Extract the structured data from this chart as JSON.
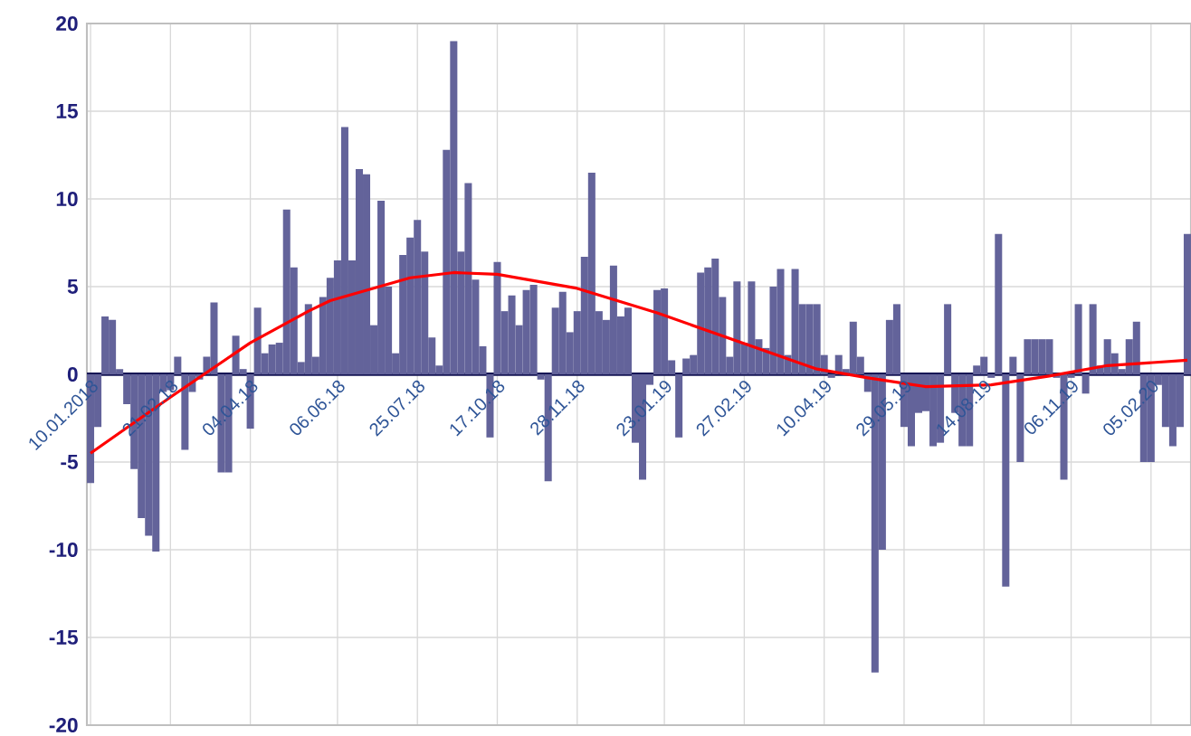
{
  "chart_data": {
    "type": "bar",
    "categories": [
      "10.01.2018",
      null,
      null,
      null,
      null,
      null,
      null,
      null,
      null,
      null,
      null,
      "21.02.18",
      null,
      null,
      null,
      null,
      null,
      null,
      null,
      null,
      null,
      null,
      "04.04.18",
      null,
      null,
      null,
      null,
      null,
      null,
      null,
      null,
      null,
      null,
      null,
      "06.06.18",
      null,
      null,
      null,
      null,
      null,
      null,
      null,
      null,
      null,
      null,
      "25.07.18",
      null,
      null,
      null,
      null,
      null,
      null,
      null,
      null,
      null,
      null,
      "17.10.18",
      null,
      null,
      null,
      null,
      null,
      null,
      null,
      null,
      null,
      null,
      "28.11.18",
      null,
      null,
      null,
      null,
      null,
      null,
      null,
      null,
      null,
      null,
      null,
      "23.01.19",
      null,
      null,
      null,
      null,
      null,
      null,
      null,
      null,
      null,
      null,
      "27.02.19",
      null,
      null,
      null,
      null,
      null,
      null,
      null,
      null,
      null,
      null,
      "10.04.19",
      null,
      null,
      null,
      null,
      null,
      null,
      null,
      null,
      null,
      null,
      "29.05.19",
      null,
      null,
      null,
      null,
      null,
      null,
      null,
      null,
      null,
      null,
      "14.08.19",
      null,
      null,
      null,
      null,
      null,
      null,
      null,
      null,
      null,
      null,
      null,
      "06.11.19",
      null,
      null,
      null,
      null,
      null,
      null,
      null,
      null,
      null,
      null,
      "05.02.20",
      null,
      null,
      null,
      null,
      null
    ],
    "series": [
      {
        "color": "#63639a",
        "values": [
          -6.2,
          -3.0,
          3.3,
          3.1,
          0.3,
          -1.7,
          -5.4,
          -8.2,
          -9.2,
          -10.1,
          -1.0,
          -0.9,
          1.0,
          -4.3,
          -1.0,
          -0.3,
          1.0,
          4.1,
          -5.6,
          -5.6,
          2.2,
          0.3,
          -3.1,
          3.8,
          1.2,
          1.7,
          1.8,
          9.4,
          6.1,
          0.7,
          4.0,
          1.0,
          4.4,
          5.5,
          6.5,
          14.1,
          6.5,
          11.7,
          11.4,
          2.8,
          9.9,
          5.0,
          1.2,
          6.8,
          7.8,
          8.8,
          7.0,
          2.1,
          0.5,
          12.8,
          19.0,
          7.0,
          10.9,
          5.4,
          1.6,
          -3.6,
          6.4,
          3.6,
          4.5,
          2.8,
          4.8,
          5.1,
          -0.3,
          -6.1,
          3.8,
          4.7,
          2.4,
          3.6,
          6.7,
          11.5,
          3.6,
          3.1,
          6.2,
          3.3,
          3.8,
          -3.9,
          -6.0,
          -0.6,
          4.8,
          4.9,
          0.8,
          -3.6,
          0.9,
          1.1,
          5.8,
          6.1,
          6.6,
          4.4,
          1.0,
          5.3,
          1.8,
          5.3,
          2.0,
          1.5,
          5.0,
          6.0,
          1.1,
          6.0,
          4.0,
          4.0,
          4.0,
          1.1,
          -0.2,
          1.1,
          0.3,
          3.0,
          1.0,
          -1.0,
          -17.0,
          -10.0,
          3.1,
          4.0,
          -3.0,
          -4.1,
          -2.2,
          -2.1,
          -4.1,
          -3.9,
          4.0,
          -2.2,
          -4.1,
          -4.1,
          0.5,
          1.0,
          -0.2,
          8.0,
          -12.1,
          1.0,
          -5.0,
          2.0,
          2.0,
          2.0,
          2.0,
          -0.2,
          -6.0,
          -0.2,
          4.0,
          -1.1,
          4.0,
          0.5,
          2.0,
          1.2,
          0.3,
          2.0,
          3.0,
          -5.0,
          -5.0,
          -0.6,
          -3.0,
          -4.1,
          -3.0,
          8.0
        ]
      },
      {
        "type": "line",
        "color": "#ff0000",
        "values": [
          -4.5,
          null,
          null,
          null,
          null,
          null,
          null,
          null,
          null,
          null,
          null,
          -1.3,
          null,
          null,
          null,
          null,
          null,
          null,
          null,
          null,
          null,
          null,
          1.8,
          null,
          null,
          null,
          null,
          null,
          null,
          null,
          3.6,
          null,
          null,
          4.2,
          null,
          null,
          null,
          null,
          null,
          null,
          null,
          null,
          null,
          null,
          5.5,
          null,
          null,
          null,
          null,
          null,
          5.8,
          null,
          null,
          null,
          null,
          null,
          5.7,
          null,
          null,
          null,
          null,
          null,
          null,
          null,
          null,
          null,
          null,
          4.9,
          null,
          null,
          null,
          null,
          null,
          null,
          null,
          null,
          null,
          null,
          3.5,
          null,
          null,
          null,
          null,
          null,
          null,
          null,
          null,
          null,
          null,
          1.9,
          null,
          null,
          null,
          null,
          null,
          null,
          null,
          null,
          null,
          null,
          0.3,
          null,
          null,
          null,
          null,
          null,
          null,
          -0.2,
          null,
          null,
          null,
          null,
          null,
          null,
          null,
          -0.7,
          null,
          null,
          null,
          null,
          null,
          null,
          null,
          null,
          -0.6,
          null,
          null,
          null,
          null,
          null,
          null,
          null,
          -0.1,
          null,
          null,
          null,
          null,
          null,
          null,
          null,
          0.5,
          null,
          null,
          null,
          null,
          null,
          null,
          null,
          null,
          null,
          null,
          0.8
        ]
      }
    ],
    "ylim": [
      -20,
      20
    ],
    "yticks": [
      -20,
      -15,
      -10,
      -5,
      0,
      5,
      10,
      15,
      20
    ],
    "grid": true
  }
}
